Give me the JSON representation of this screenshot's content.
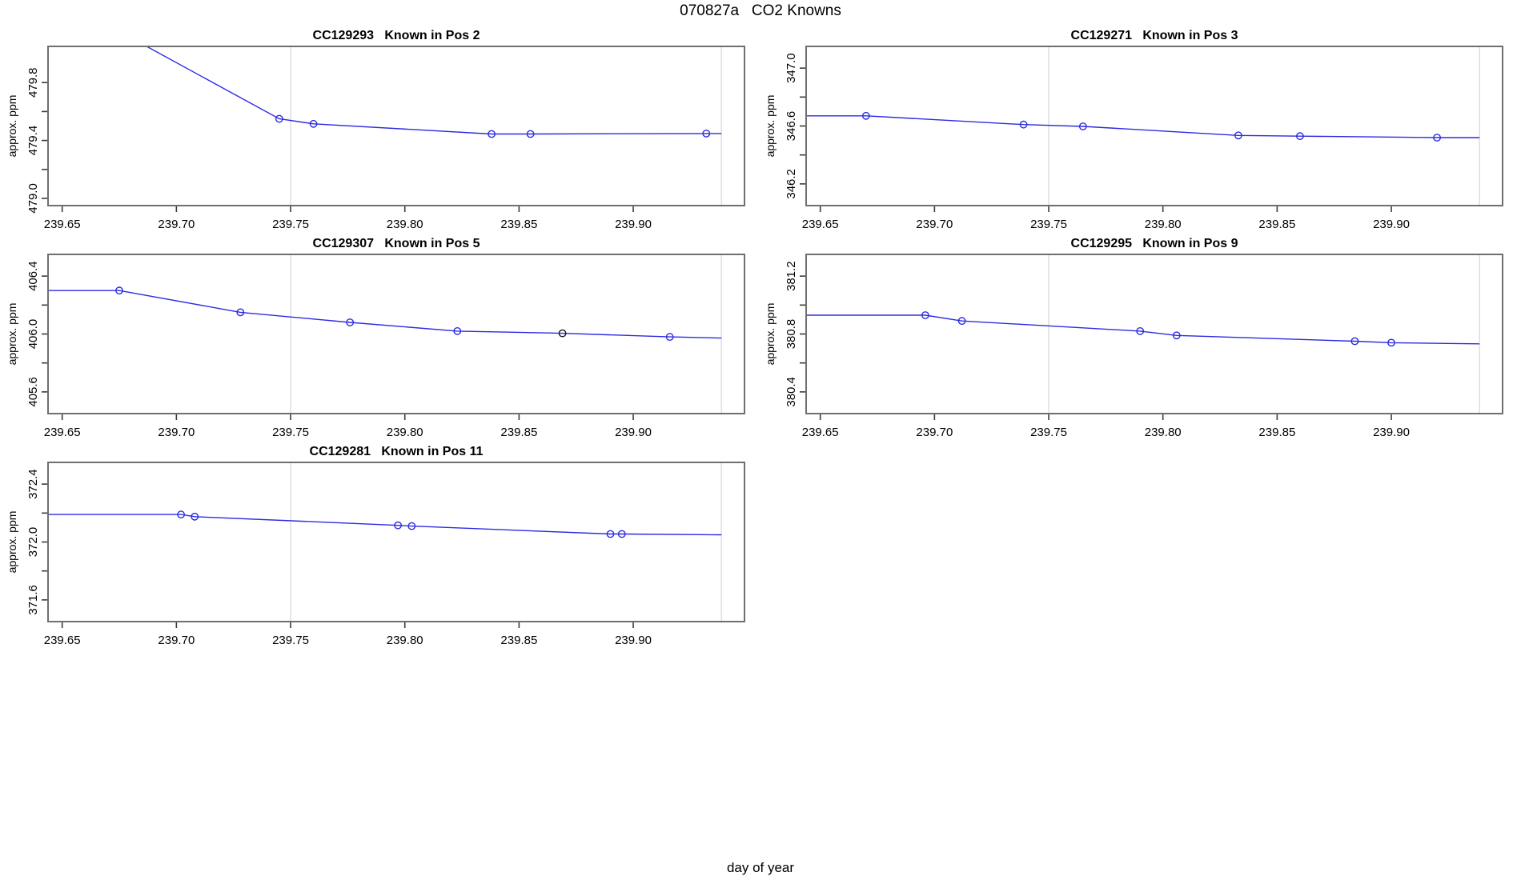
{
  "main_title": "070827a   CO2 Knowns",
  "outer_xlabel": "day of year",
  "colors": {
    "line": "#2B2BE2",
    "marker": "#2B2BE2",
    "marker_alt": "#111111",
    "reference_line": "#DCDCDC",
    "box": "#6F6F6F",
    "tick": "#3C3C3C",
    "text": "#000000",
    "background": "#FFFFFF"
  },
  "chart_data": {
    "type": "line",
    "x_axis": {
      "label": "day of year",
      "xlim": [
        239.6438,
        239.9487
      ],
      "ticks": [
        239.65,
        239.7,
        239.75,
        239.8,
        239.85,
        239.9
      ],
      "tick_labels": [
        "239.65",
        "239.70",
        "239.75",
        "239.80",
        "239.85",
        "239.90"
      ]
    },
    "reference_x": [
      239.75,
      239.9386
    ],
    "plots": [
      {
        "title": "CC129293   Known in Pos 2",
        "row": 0,
        "col": 0,
        "ylabel": "approx. ppm",
        "ylim": [
          478.95,
          480.05
        ],
        "yticks": [
          479.0,
          479.2,
          479.4,
          479.6,
          479.8
        ],
        "ytick_labels": [
          "479.0",
          "",
          "479.4",
          "",
          "479.8"
        ],
        "line": [
          [
            239.658,
            480.3
          ],
          [
            239.745,
            479.55
          ],
          [
            239.76,
            479.515
          ],
          [
            239.838,
            479.445
          ],
          [
            239.855,
            479.445
          ],
          [
            239.932,
            479.448
          ],
          [
            239.9386,
            479.448
          ]
        ],
        "points": [
          {
            "x": 239.745,
            "y": 479.55,
            "color": "blue"
          },
          {
            "x": 239.76,
            "y": 479.515,
            "color": "blue"
          },
          {
            "x": 239.838,
            "y": 479.445,
            "color": "blue"
          },
          {
            "x": 239.855,
            "y": 479.445,
            "color": "blue"
          },
          {
            "x": 239.932,
            "y": 479.448,
            "color": "blue"
          }
        ]
      },
      {
        "title": "CC129271   Known in Pos 3",
        "row": 0,
        "col": 1,
        "ylabel": "approx. ppm",
        "ylim": [
          346.05,
          347.15
        ],
        "yticks": [
          346.2,
          346.4,
          346.6,
          346.8,
          347.0
        ],
        "ytick_labels": [
          "346.2",
          "",
          "346.6",
          "",
          "347.0"
        ],
        "line": [
          [
            239.6438,
            346.67
          ],
          [
            239.67,
            346.67
          ],
          [
            239.739,
            346.61
          ],
          [
            239.765,
            346.597
          ],
          [
            239.833,
            346.535
          ],
          [
            239.86,
            346.53
          ],
          [
            239.92,
            346.52
          ],
          [
            239.9386,
            346.52
          ]
        ],
        "points": [
          {
            "x": 239.67,
            "y": 346.67,
            "color": "blue"
          },
          {
            "x": 239.739,
            "y": 346.61,
            "color": "blue"
          },
          {
            "x": 239.765,
            "y": 346.597,
            "color": "blue"
          },
          {
            "x": 239.833,
            "y": 346.535,
            "color": "blue"
          },
          {
            "x": 239.86,
            "y": 346.53,
            "color": "blue"
          },
          {
            "x": 239.92,
            "y": 346.52,
            "color": "blue"
          }
        ]
      },
      {
        "title": "CC129307   Known in Pos 5",
        "row": 1,
        "col": 0,
        "ylabel": "approx. ppm",
        "ylim": [
          405.45,
          406.55
        ],
        "yticks": [
          405.6,
          405.8,
          406.0,
          406.2,
          406.4
        ],
        "ytick_labels": [
          "405.6",
          "",
          "406.0",
          "",
          "406.4"
        ],
        "line": [
          [
            239.6438,
            406.3
          ],
          [
            239.675,
            406.3
          ],
          [
            239.728,
            406.15
          ],
          [
            239.776,
            406.08
          ],
          [
            239.823,
            406.02
          ],
          [
            239.869,
            406.005
          ],
          [
            239.916,
            405.98
          ],
          [
            239.9386,
            405.972
          ]
        ],
        "points": [
          {
            "x": 239.675,
            "y": 406.3,
            "color": "blue"
          },
          {
            "x": 239.728,
            "y": 406.15,
            "color": "blue"
          },
          {
            "x": 239.776,
            "y": 406.08,
            "color": "blue"
          },
          {
            "x": 239.823,
            "y": 406.02,
            "color": "blue"
          },
          {
            "x": 239.869,
            "y": 406.005,
            "color": "black"
          },
          {
            "x": 239.916,
            "y": 405.98,
            "color": "blue"
          }
        ]
      },
      {
        "title": "CC129295   Known in Pos 9",
        "row": 1,
        "col": 1,
        "ylabel": "approx. ppm",
        "ylim": [
          380.25,
          381.35
        ],
        "yticks": [
          380.4,
          380.6,
          380.8,
          381.0,
          381.2
        ],
        "ytick_labels": [
          "380.4",
          "",
          "380.8",
          "",
          "381.2"
        ],
        "line": [
          [
            239.6438,
            380.93
          ],
          [
            239.696,
            380.93
          ],
          [
            239.712,
            380.89
          ],
          [
            239.79,
            380.82
          ],
          [
            239.806,
            380.79
          ],
          [
            239.884,
            380.75
          ],
          [
            239.9,
            380.74
          ],
          [
            239.9386,
            380.732
          ]
        ],
        "points": [
          {
            "x": 239.696,
            "y": 380.93,
            "color": "blue"
          },
          {
            "x": 239.712,
            "y": 380.89,
            "color": "blue"
          },
          {
            "x": 239.79,
            "y": 380.82,
            "color": "blue"
          },
          {
            "x": 239.806,
            "y": 380.79,
            "color": "blue"
          },
          {
            "x": 239.884,
            "y": 380.75,
            "color": "blue"
          },
          {
            "x": 239.9,
            "y": 380.74,
            "color": "blue"
          }
        ]
      },
      {
        "title": "CC129281   Known in Pos 11",
        "row": 2,
        "col": 0,
        "ylabel": "approx. ppm",
        "ylim": [
          371.45,
          372.55
        ],
        "yticks": [
          371.6,
          371.8,
          372.0,
          372.2,
          372.4
        ],
        "ytick_labels": [
          "371.6",
          "",
          "372.0",
          "",
          "372.4"
        ],
        "line": [
          [
            239.6438,
            372.19
          ],
          [
            239.702,
            372.19
          ],
          [
            239.708,
            372.175
          ],
          [
            239.797,
            372.115
          ],
          [
            239.803,
            372.11
          ],
          [
            239.89,
            372.055
          ],
          [
            239.895,
            372.055
          ],
          [
            239.9386,
            372.05
          ]
        ],
        "points": [
          {
            "x": 239.702,
            "y": 372.19,
            "color": "blue"
          },
          {
            "x": 239.708,
            "y": 372.175,
            "color": "blue"
          },
          {
            "x": 239.797,
            "y": 372.115,
            "color": "blue"
          },
          {
            "x": 239.803,
            "y": 372.11,
            "color": "blue"
          },
          {
            "x": 239.89,
            "y": 372.055,
            "color": "blue"
          },
          {
            "x": 239.895,
            "y": 372.055,
            "color": "blue"
          }
        ]
      }
    ]
  }
}
